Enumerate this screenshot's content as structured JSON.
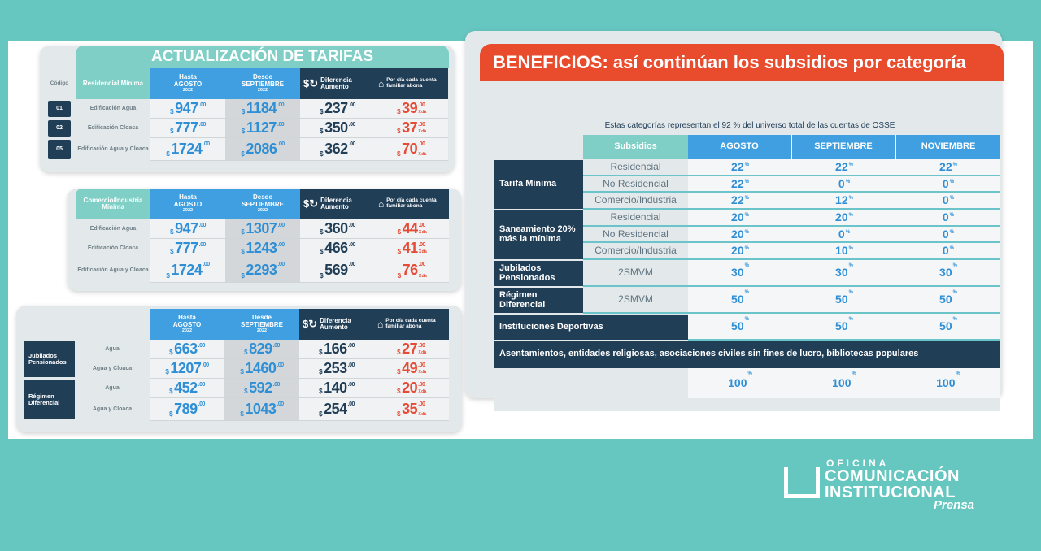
{
  "tarifas": {
    "title": "ACTUALIZACIÓN DE TARIFAS",
    "codigo_label": "Código",
    "col_hasta": "Hasta",
    "col_agosto": "AGOSTO",
    "col_desde": "Desde",
    "col_septiembre": "SEPTIEMBRE",
    "col_year": "2022",
    "col_diferencia": "Diferencia",
    "col_aumento": "Aumento",
    "col_por_dia": "Por día cada cuenta familiar abona",
    "currency": "$",
    "cents": ".00",
    "x_dia": "X día",
    "table1": {
      "category": "Residencial Mínima",
      "rows": [
        {
          "code": "01",
          "label": "Edificación Agua",
          "agosto": "947",
          "septiembre": "1184",
          "diferencia": "237",
          "dia": "39"
        },
        {
          "code": "02",
          "label": "Edificación Cloaca",
          "agosto": "777",
          "septiembre": "1127",
          "diferencia": "350",
          "dia": "37"
        },
        {
          "code": "05",
          "label": "Edificación Agua y Cloaca",
          "agosto": "1724",
          "septiembre": "2086",
          "diferencia": "362",
          "dia": "70"
        }
      ]
    },
    "table2": {
      "category": "Comercio/Industria Mínima",
      "rows": [
        {
          "label": "Edificación Agua",
          "agosto": "947",
          "septiembre": "1307",
          "diferencia": "360",
          "dia": "44"
        },
        {
          "label": "Edificación Cloaca",
          "agosto": "777",
          "septiembre": "1243",
          "diferencia": "466",
          "dia": "41"
        },
        {
          "label": "Edificación Agua y Cloaca",
          "agosto": "1724",
          "septiembre": "2293",
          "diferencia": "569",
          "dia": "76"
        }
      ]
    },
    "table3": {
      "groups": [
        {
          "group": "Jubilados Pensionados",
          "rows": [
            {
              "label": "Agua",
              "agosto": "663",
              "septiembre": "829",
              "diferencia": "166",
              "dia": "27"
            },
            {
              "label": "Agua y Cloaca",
              "agosto": "1207",
              "septiembre": "1460",
              "diferencia": "253",
              "dia": "49"
            }
          ]
        },
        {
          "group": "Régimen Diferencial",
          "rows": [
            {
              "label": "Agua",
              "agosto": "452",
              "septiembre": "592",
              "diferencia": "140",
              "dia": "20"
            },
            {
              "label": "Agua y Cloaca",
              "agosto": "789",
              "septiembre": "1043",
              "diferencia": "254",
              "dia": "35"
            }
          ]
        }
      ]
    }
  },
  "beneficios": {
    "title": "BENEFICIOS: así continúan los subsidios por categoría",
    "subtitle": "Estas categorías representan el 92 % del universo total de las cuentas de OSSE",
    "col_subsidios": "Subsidios",
    "col_agosto": "AGOSTO",
    "col_septiembre": "SEPTIEMBRE",
    "col_noviembre": "NOVIEMBRE",
    "pct": "%",
    "tarifa_minima": {
      "label": "Tarifa Mínima",
      "rows": [
        {
          "sub": "Residencial",
          "ago": "22",
          "sep": "22",
          "nov": "22"
        },
        {
          "sub": "No Residencial",
          "ago": "22",
          "sep": "0",
          "nov": "0"
        },
        {
          "sub": "Comercio/Industria",
          "ago": "22",
          "sep": "12",
          "nov": "0"
        }
      ]
    },
    "saneamiento": {
      "label": "Saneamiento 20% más la mínima",
      "rows": [
        {
          "sub": "Residencial",
          "ago": "20",
          "sep": "20",
          "nov": "0"
        },
        {
          "sub": "No Residencial",
          "ago": "20",
          "sep": "0",
          "nov": "0"
        },
        {
          "sub": "Comercio/Industria",
          "ago": "20",
          "sep": "10",
          "nov": "0"
        }
      ]
    },
    "jubilados": {
      "label": "Jubilados Pensionados",
      "sub": "2SMVM",
      "ago": "30",
      "sep": "30",
      "nov": "30"
    },
    "regimen": {
      "label": "Régimen Diferencial",
      "sub": "2SMVM",
      "ago": "50",
      "sep": "50",
      "nov": "50"
    },
    "deportivas": {
      "label": "Instituciones Deportivas",
      "ago": "50",
      "sep": "50",
      "nov": "50"
    },
    "asentamientos": {
      "label": "Asentamientos, entidades religiosas, asociaciones civiles sin fines de lucro, bibliotecas populares",
      "ago": "100",
      "sep": "100",
      "nov": "100"
    }
  },
  "logo": {
    "line1": "OFICINA",
    "line2": "COMUNICACIÓN",
    "line3": "INSTITUCIONAL",
    "line4": "Prensa"
  },
  "colors": {
    "teal": "#66c6c0",
    "navy": "#213e57",
    "blue": "#3f9fe0",
    "red": "#e64b35",
    "orange": "#e94b2d"
  }
}
